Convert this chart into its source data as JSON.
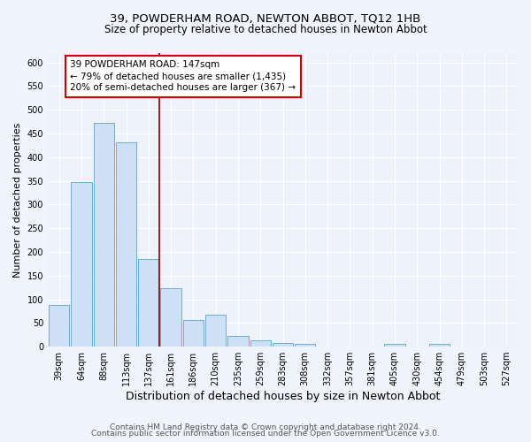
{
  "title": "39, POWDERHAM ROAD, NEWTON ABBOT, TQ12 1HB",
  "subtitle": "Size of property relative to detached houses in Newton Abbot",
  "xlabel": "Distribution of detached houses by size in Newton Abbot",
  "ylabel": "Number of detached properties",
  "categories": [
    "39sqm",
    "64sqm",
    "88sqm",
    "113sqm",
    "137sqm",
    "161sqm",
    "186sqm",
    "210sqm",
    "235sqm",
    "259sqm",
    "283sqm",
    "308sqm",
    "332sqm",
    "357sqm",
    "381sqm",
    "405sqm",
    "430sqm",
    "454sqm",
    "479sqm",
    "503sqm",
    "527sqm"
  ],
  "values": [
    88,
    347,
    473,
    432,
    185,
    124,
    57,
    68,
    23,
    14,
    8,
    5,
    0,
    0,
    0,
    5,
    0,
    5,
    0,
    0,
    0
  ],
  "bar_color": "#cde0f5",
  "bar_edge_color": "#6aaed6",
  "vline_x_index": 4.5,
  "vline_color": "#8b0000",
  "annotation_text": "39 POWDERHAM ROAD: 147sqm\n← 79% of detached houses are smaller (1,435)\n20% of semi-detached houses are larger (367) →",
  "annotation_box_color": "white",
  "annotation_box_edge": "#cc0000",
  "ylim": [
    0,
    620
  ],
  "yticks": [
    0,
    50,
    100,
    150,
    200,
    250,
    300,
    350,
    400,
    450,
    500,
    550,
    600
  ],
  "footer_line1": "Contains HM Land Registry data © Crown copyright and database right 2024.",
  "footer_line2": "Contains public sector information licensed under the Open Government Licence v3.0.",
  "background_color": "#f0f4fc",
  "plot_background": "#eef3fb",
  "title_fontsize": 9.5,
  "subtitle_fontsize": 8.5,
  "xlabel_fontsize": 9,
  "ylabel_fontsize": 8,
  "tick_fontsize": 7,
  "annotation_fontsize": 7.5,
  "footer_fontsize": 6.5
}
